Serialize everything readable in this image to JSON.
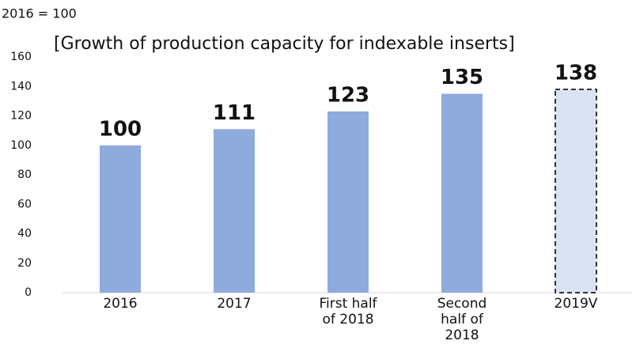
{
  "chart_data": {
    "type": "bar",
    "subtitle": "2016 = 100",
    "title": "[Growth of production capacity for indexable inserts]",
    "categories": [
      "2016",
      "2017",
      "First half\nof 2018",
      "Second\nhalf of\n2018",
      "2019V"
    ],
    "values": [
      100,
      111,
      123,
      135,
      138
    ],
    "colors": [
      "#8faadc",
      "#8faadc",
      "#8faadc",
      "#8faadc",
      "#dae3f3"
    ],
    "dashed": [
      false,
      false,
      false,
      false,
      true
    ],
    "ylim": [
      0,
      160
    ],
    "yticks": [
      0,
      20,
      40,
      60,
      80,
      100,
      120,
      140,
      160
    ],
    "grid": false
  }
}
